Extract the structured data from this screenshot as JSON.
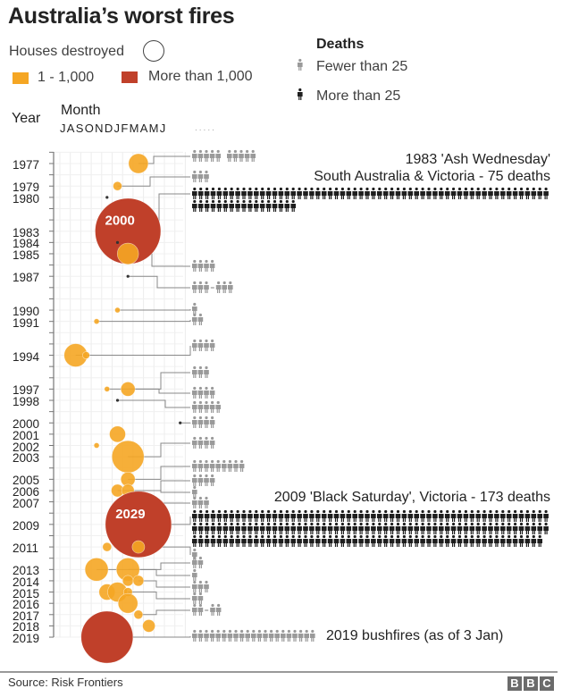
{
  "title": "Australia’s worst fires",
  "legend": {
    "houses_label": "Houses destroyed",
    "orange_label": "1 - 1,000",
    "red_label": "More than 1,000",
    "deaths_title": "Deaths",
    "fewer_label": "Fewer than 25",
    "more_label": "More than 25",
    "colors": {
      "orange": "#f5a623",
      "red": "#c0402a",
      "gray_icon": "#9a9a9a",
      "black_icon": "#1e1e1e"
    }
  },
  "axes": {
    "year_label": "Year",
    "month_label": "Month",
    "month_letters": "JASONDJFMAMJ",
    "month_dots": ".....",
    "year_ticks": [
      "1977",
      "1979",
      "1980",
      "1983",
      "1984",
      "1985",
      "1987",
      "1990",
      "1991",
      "1994",
      "1997",
      "1998",
      "2000",
      "2001",
      "2002",
      "2003",
      "2005",
      "2006",
      "2007",
      "2009",
      "2011",
      "2013",
      "2014",
      "2015",
      "2016",
      "2017",
      "2018",
      "2019"
    ]
  },
  "annotations": {
    "ash_wednesday_1": "1983 'Ash Wednesday'",
    "ash_wednesday_2": "South Australia & Victoria - 75 deaths",
    "black_saturday": "2009 'Black Saturday', Victoria - 173 deaths",
    "bushfires_2019": "2019 bushfires (as of 3 Jan)"
  },
  "footer": {
    "source": "Source: Risk Frontiers",
    "logo": [
      "B",
      "B",
      "C"
    ]
  },
  "chart_data": {
    "type": "scatter",
    "title": "Australia’s worst fires",
    "xlabel": "Month",
    "ylabel": "Year",
    "x_categories": [
      "J",
      "A",
      "S",
      "O",
      "N",
      "D",
      "J",
      "F",
      "M",
      "A",
      "M",
      "J"
    ],
    "ylim": [
      1976,
      2019
    ],
    "size_encoding": "Houses destroyed",
    "bubbles": [
      {
        "year": 1977,
        "month": 7,
        "houses": 180,
        "category": "1 - 1,000"
      },
      {
        "year": 1979,
        "month": 5,
        "houses": 37,
        "category": "1 - 1,000"
      },
      {
        "year": 1980,
        "month": 4,
        "houses": 0,
        "category": "none"
      },
      {
        "year": 1983,
        "month": 6,
        "houses": 2000,
        "category": "More than 1,000",
        "label": "2000"
      },
      {
        "year": 1984,
        "month": 5,
        "houses": 0,
        "category": "none"
      },
      {
        "year": 1985,
        "month": 6,
        "houses": 210,
        "category": "1 - 1,000"
      },
      {
        "year": 1987,
        "month": 6,
        "houses": 0,
        "category": "none"
      },
      {
        "year": 1990,
        "month": 5,
        "houses": 10,
        "category": "1 - 1,000"
      },
      {
        "year": 1991,
        "month": 3,
        "houses": 10,
        "category": "1 - 1,000"
      },
      {
        "year": 1994,
        "month": 1,
        "houses": 250,
        "category": "1 - 1,000"
      },
      {
        "year": 1994,
        "month": 2,
        "houses": 24,
        "category": "1 - 1,000"
      },
      {
        "year": 1997,
        "month": 4,
        "houses": 13,
        "category": "1 - 1,000"
      },
      {
        "year": 1997,
        "month": 6,
        "houses": 95,
        "category": "1 - 1,000"
      },
      {
        "year": 1998,
        "month": 5,
        "houses": 0,
        "category": "none"
      },
      {
        "year": 2000,
        "month": 11,
        "houses": 0,
        "category": "none"
      },
      {
        "year": 2001,
        "month": 5,
        "houses": 120,
        "category": "1 - 1,000"
      },
      {
        "year": 2002,
        "month": 3,
        "houses": 13,
        "category": "1 - 1,000"
      },
      {
        "year": 2003,
        "month": 6,
        "houses": 480,
        "category": "1 - 1,000"
      },
      {
        "year": 2005,
        "month": 6,
        "houses": 95,
        "category": "1 - 1,000"
      },
      {
        "year": 2006,
        "month": 5,
        "houses": 73,
        "category": "1 - 1,000"
      },
      {
        "year": 2006,
        "month": 6,
        "houses": 73,
        "category": "1 - 1,000"
      },
      {
        "year": 2009,
        "month": 7,
        "houses": 2029,
        "category": "More than 1,000",
        "label": "2029"
      },
      {
        "year": 2011,
        "month": 4,
        "houses": 37,
        "category": "1 - 1,000"
      },
      {
        "year": 2011,
        "month": 7,
        "houses": 73,
        "category": "1 - 1,000"
      },
      {
        "year": 2013,
        "month": 3,
        "houses": 250,
        "category": "1 - 1,000"
      },
      {
        "year": 2013,
        "month": 6,
        "houses": 250,
        "category": "1 - 1,000"
      },
      {
        "year": 2014,
        "month": 6,
        "houses": 53,
        "category": "1 - 1,000"
      },
      {
        "year": 2014,
        "month": 7,
        "houses": 53,
        "category": "1 - 1,000"
      },
      {
        "year": 2015,
        "month": 4,
        "houses": 120,
        "category": "1 - 1,000"
      },
      {
        "year": 2015,
        "month": 5,
        "houses": 180,
        "category": "1 - 1,000"
      },
      {
        "year": 2015,
        "month": 6,
        "houses": 37,
        "category": "1 - 1,000"
      },
      {
        "year": 2016,
        "month": 6,
        "houses": 180,
        "category": "1 - 1,000"
      },
      {
        "year": 2017,
        "month": 7,
        "houses": 37,
        "category": "1 - 1,000"
      },
      {
        "year": 2018,
        "month": 8,
        "houses": 73,
        "category": "1 - 1,000"
      },
      {
        "year": 2019,
        "month": 4,
        "houses": 1250,
        "category": "More than 1,000"
      }
    ],
    "deaths": [
      {
        "bubble": 0,
        "groups": [
          5,
          5
        ],
        "sep": " ",
        "color": "gray"
      },
      {
        "bubble": 1,
        "groups": [
          3
        ],
        "color": "gray"
      },
      {
        "bubble": 3,
        "groups": [
          75
        ],
        "color": "black"
      },
      {
        "bubble": 5,
        "groups": [
          4
        ],
        "color": "gray"
      },
      {
        "bubble": 6,
        "groups": [
          3,
          3
        ],
        "sep": "-",
        "color": "gray"
      },
      {
        "bubble": 7,
        "groups": [
          1
        ],
        "color": "gray"
      },
      {
        "bubble": 8,
        "groups": [
          2
        ],
        "color": "gray"
      },
      {
        "bubble": 9,
        "groups": [
          4
        ],
        "color": "gray"
      },
      {
        "bubble": 12,
        "groups": [
          3
        ],
        "color": "gray"
      },
      {
        "bubble": 11,
        "groups": [
          4
        ],
        "color": "gray"
      },
      {
        "bubble": 13,
        "groups": [
          5
        ],
        "color": "gray"
      },
      {
        "bubble": 14,
        "groups": [
          4
        ],
        "color": "gray"
      },
      {
        "bubble": 17,
        "groups": [
          4
        ],
        "color": "gray"
      },
      {
        "bubble": 18,
        "groups": [
          9
        ],
        "color": "gray"
      },
      {
        "bubble": 19,
        "groups": [
          4
        ],
        "color": "gray"
      },
      {
        "bubble": 20,
        "groups": [
          1
        ],
        "color": "gray"
      },
      {
        "bubble": 21,
        "groups": [
          3
        ],
        "color": "gray"
      },
      {
        "bubble": 21,
        "groups": [
          173
        ],
        "color": "black"
      },
      {
        "bubble": 23,
        "groups": [
          1
        ],
        "color": "gray"
      },
      {
        "bubble": 24,
        "groups": [
          2
        ],
        "color": "gray"
      },
      {
        "bubble": 25,
        "groups": [
          1
        ],
        "color": "gray"
      },
      {
        "bubble": 27,
        "groups": [
          3
        ],
        "color": "gray"
      },
      {
        "bubble": 30,
        "groups": [
          2
        ],
        "color": "gray"
      },
      {
        "bubble": 32,
        "groups": [
          2,
          2
        ],
        "sep": "-",
        "color": "gray"
      },
      {
        "bubble": 34,
        "groups": [
          21
        ],
        "color": "gray"
      }
    ]
  }
}
